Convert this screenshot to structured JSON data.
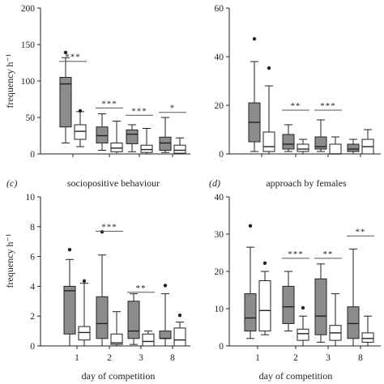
{
  "colors": {
    "dark_box": "#8c8c8c",
    "light_box": "#ffffff",
    "line": "#222222",
    "bracket": "#555555"
  },
  "chart_data": [
    {
      "id": "a",
      "type": "boxplot",
      "panel_label": "",
      "title": "",
      "ylabel": "frequency h⁻¹",
      "xlabel": "",
      "ylim": [
        0,
        200
      ],
      "yticks": [
        "0",
        "50",
        "100",
        "150",
        "200"
      ],
      "categories": [
        "1",
        "2",
        "3",
        "8"
      ],
      "show_xticklabels": false,
      "series": [
        {
          "fill": "dark",
          "boxes": [
            {
              "min": 15,
              "q1": 37,
              "median": 96,
              "q3": 105,
              "max": 132,
              "outliers": [
                138
              ]
            },
            {
              "min": 5,
              "q1": 15,
              "median": 25,
              "q3": 37,
              "max": 55,
              "outliers": []
            },
            {
              "min": 3,
              "q1": 14,
              "median": 27,
              "q3": 33,
              "max": 40,
              "outliers": []
            },
            {
              "min": 2,
              "q1": 5,
              "median": 15,
              "q3": 23,
              "max": 50,
              "outliers": []
            }
          ]
        },
        {
          "fill": "light",
          "boxes": [
            {
              "min": 10,
              "q1": 20,
              "median": 31,
              "q3": 40,
              "max": 58,
              "outliers": [
                58
              ]
            },
            {
              "min": 0,
              "q1": 3,
              "median": 8,
              "q3": 15,
              "max": 45,
              "outliers": []
            },
            {
              "min": 0,
              "q1": 2,
              "median": 6,
              "q3": 12,
              "max": 35,
              "outliers": []
            },
            {
              "min": 0,
              "q1": 1,
              "median": 5,
              "q3": 12,
              "max": 22,
              "outliers": []
            }
          ]
        }
      ],
      "significance": [
        {
          "category": "1",
          "label": "***",
          "y": 127
        },
        {
          "category": "2",
          "label": "***",
          "y": 63
        },
        {
          "category": "3",
          "label": "***",
          "y": 53
        },
        {
          "category": "8",
          "label": "*",
          "y": 57
        }
      ]
    },
    {
      "id": "b",
      "type": "boxplot",
      "panel_label": "",
      "title": "",
      "ylabel": "",
      "xlabel": "",
      "ylim": [
        0,
        60
      ],
      "yticks": [
        "0",
        "20",
        "40",
        "60"
      ],
      "categories": [
        "1",
        "2",
        "3",
        "8"
      ],
      "show_xticklabels": false,
      "series": [
        {
          "fill": "dark",
          "boxes": [
            {
              "min": 1,
              "q1": 5,
              "median": 13,
              "q3": 21,
              "max": 38,
              "outliers": [
                47
              ]
            },
            {
              "min": 1,
              "q1": 2,
              "median": 4,
              "q3": 8,
              "max": 12,
              "outliers": []
            },
            {
              "min": 1,
              "q1": 2,
              "median": 3,
              "q3": 7,
              "max": 14,
              "outliers": []
            },
            {
              "min": 0,
              "q1": 1,
              "median": 2,
              "q3": 4,
              "max": 6,
              "outliers": []
            }
          ]
        },
        {
          "fill": "light",
          "boxes": [
            {
              "min": 0,
              "q1": 1,
              "median": 3,
              "q3": 9,
              "max": 28,
              "outliers": [
                35
              ]
            },
            {
              "min": 0,
              "q1": 1,
              "median": 2,
              "q3": 4,
              "max": 6,
              "outliers": []
            },
            {
              "min": 0,
              "q1": 0,
              "median": 0,
              "q3": 4,
              "max": 7,
              "outliers": []
            },
            {
              "min": 0,
              "q1": 0,
              "median": 3,
              "q3": 6,
              "max": 10,
              "outliers": []
            }
          ]
        }
      ],
      "significance": [
        {
          "category": "2",
          "label": "**",
          "y": 18
        },
        {
          "category": "3",
          "label": "***",
          "y": 18
        }
      ]
    },
    {
      "id": "c",
      "type": "boxplot",
      "panel_label": "(c)",
      "title": "sociopositive behaviour",
      "ylabel": "frequency h⁻¹",
      "xlabel": "day of competition",
      "ylim": [
        0,
        10
      ],
      "yticks": [
        "0",
        "2",
        "4",
        "6",
        "8",
        "10"
      ],
      "categories": [
        "1",
        "2",
        "3",
        "8"
      ],
      "show_xticklabels": true,
      "series": [
        {
          "fill": "dark",
          "boxes": [
            {
              "min": 0,
              "q1": 0.8,
              "median": 3.7,
              "q3": 4.0,
              "max": 5.8,
              "outliers": [
                6.4
              ]
            },
            {
              "min": 0,
              "q1": 0.5,
              "median": 1.5,
              "q3": 3.3,
              "max": 6.1,
              "outliers": [
                7.6
              ]
            },
            {
              "min": 0.1,
              "q1": 0.5,
              "median": 1.0,
              "q3": 3.0,
              "max": 3.5,
              "outliers": []
            },
            {
              "min": 0,
              "q1": 0.5,
              "median": 0.5,
              "q3": 1.0,
              "max": 3.5,
              "outliers": [
                4.0
              ]
            }
          ]
        },
        {
          "fill": "light",
          "boxes": [
            {
              "min": 0,
              "q1": 0.4,
              "median": 0.9,
              "q3": 1.3,
              "max": 4.2,
              "outliers": [
                4.3
              ]
            },
            {
              "min": 0,
              "q1": 0.1,
              "median": 0.2,
              "q3": 0.8,
              "max": 2.3,
              "outliers": []
            },
            {
              "min": 0,
              "q1": 0,
              "median": 0.3,
              "q3": 0.8,
              "max": 1.0,
              "outliers": []
            },
            {
              "min": 0,
              "q1": 0,
              "median": 0.4,
              "q3": 1.2,
              "max": 1.6,
              "outliers": [
                2.0
              ]
            }
          ]
        }
      ],
      "significance": [
        {
          "category": "2",
          "label": "***",
          "y": 7.7
        },
        {
          "category": "3",
          "label": "**",
          "y": 3.6
        }
      ]
    },
    {
      "id": "d",
      "type": "boxplot",
      "panel_label": "(d)",
      "title": "approach by females",
      "ylabel": "",
      "xlabel": "day of competition",
      "ylim": [
        0,
        40
      ],
      "yticks": [
        "0",
        "10",
        "20",
        "30",
        "40"
      ],
      "categories": [
        "1",
        "2",
        "3",
        "8"
      ],
      "show_xticklabels": true,
      "series": [
        {
          "fill": "dark",
          "boxes": [
            {
              "min": 2,
              "q1": 4,
              "median": 7.5,
              "q3": 14,
              "max": 26.5,
              "outliers": [
                32
              ]
            },
            {
              "min": 4,
              "q1": 6,
              "median": 10.5,
              "q3": 16,
              "max": 20,
              "outliers": []
            },
            {
              "min": 1,
              "q1": 3,
              "median": 8,
              "q3": 18,
              "max": 22,
              "outliers": []
            },
            {
              "min": 0,
              "q1": 2,
              "median": 6,
              "q3": 10.5,
              "max": 26,
              "outliers": []
            }
          ]
        },
        {
          "fill": "light",
          "boxes": [
            {
              "min": 3,
              "q1": 4,
              "median": 9.5,
              "q3": 17.5,
              "max": 20,
              "outliers": [
                22
              ]
            },
            {
              "min": 0,
              "q1": 1.5,
              "median": 3.3,
              "q3": 4.5,
              "max": 8,
              "outliers": [
                10
              ]
            },
            {
              "min": 0,
              "q1": 1.5,
              "median": 3.5,
              "q3": 5.5,
              "max": 14,
              "outliers": []
            },
            {
              "min": 0,
              "q1": 1,
              "median": 2,
              "q3": 3.5,
              "max": 8,
              "outliers": []
            }
          ]
        }
      ],
      "significance": [
        {
          "category": "2",
          "label": "***",
          "y": 23.5
        },
        {
          "category": "3",
          "label": "**",
          "y": 23.5
        },
        {
          "category": "8",
          "label": "**",
          "y": 29.5
        }
      ]
    }
  ]
}
